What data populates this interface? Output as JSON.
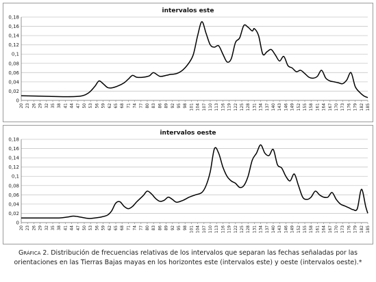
{
  "chart_data": [
    {
      "type": "line",
      "title": "intervalos este",
      "xlabel": "",
      "ylabel": "",
      "ylim": [
        0,
        0.18
      ],
      "yticks": [
        "0",
        "0,02",
        "0,04",
        "0,06",
        "0,08",
        "0,1",
        "0,12",
        "0,14",
        "0,16",
        "0,18"
      ],
      "xlim": [
        20,
        185
      ],
      "xticks": [
        20,
        23,
        26,
        29,
        32,
        35,
        38,
        41,
        44,
        47,
        50,
        53,
        56,
        59,
        62,
        65,
        68,
        71,
        74,
        77,
        80,
        83,
        86,
        89,
        92,
        95,
        98,
        101,
        104,
        107,
        110,
        113,
        116,
        119,
        122,
        125,
        128,
        131,
        134,
        137,
        140,
        143,
        146,
        149,
        152,
        155,
        158,
        161,
        164,
        167,
        170,
        173,
        176,
        179,
        182,
        185
      ],
      "grid": true,
      "x": [
        20,
        30,
        40,
        48,
        52,
        55,
        57,
        59,
        61,
        63,
        66,
        69,
        71,
        73,
        75,
        78,
        81,
        83,
        86,
        89,
        91,
        94,
        97,
        100,
        102,
        104,
        106,
        108,
        110,
        112,
        114,
        116,
        118,
        120,
        122,
        124,
        126,
        128,
        130,
        131,
        133,
        135,
        137,
        139,
        141,
        143,
        145,
        147,
        149,
        151,
        153,
        155,
        157,
        159,
        161,
        163,
        165,
        167,
        169,
        171,
        173,
        175,
        177,
        179,
        181,
        183,
        185
      ],
      "y": [
        0.01,
        0.009,
        0.008,
        0.009,
        0.016,
        0.03,
        0.042,
        0.036,
        0.028,
        0.027,
        0.031,
        0.038,
        0.046,
        0.054,
        0.05,
        0.05,
        0.053,
        0.06,
        0.052,
        0.054,
        0.056,
        0.058,
        0.066,
        0.082,
        0.1,
        0.14,
        0.17,
        0.145,
        0.12,
        0.115,
        0.118,
        0.1,
        0.083,
        0.09,
        0.125,
        0.135,
        0.162,
        0.158,
        0.15,
        0.155,
        0.14,
        0.1,
        0.105,
        0.11,
        0.098,
        0.085,
        0.095,
        0.075,
        0.07,
        0.062,
        0.065,
        0.058,
        0.05,
        0.048,
        0.052,
        0.065,
        0.048,
        0.042,
        0.04,
        0.038,
        0.036,
        0.044,
        0.06,
        0.03,
        0.018,
        0.01,
        0.006
      ]
    },
    {
      "type": "line",
      "title": "intervalos oeste",
      "xlabel": "",
      "ylabel": "",
      "ylim": [
        0,
        0.18
      ],
      "yticks": [
        "0",
        "0,02",
        "0,04",
        "0,06",
        "0,08",
        "0,1",
        "0,12",
        "0,14",
        "0,16",
        "0,18"
      ],
      "xlim": [
        20,
        185
      ],
      "xticks": [
        20,
        23,
        26,
        29,
        32,
        35,
        38,
        41,
        44,
        47,
        50,
        53,
        56,
        59,
        62,
        65,
        68,
        71,
        74,
        77,
        80,
        83,
        86,
        89,
        92,
        95,
        98,
        101,
        104,
        107,
        110,
        113,
        116,
        119,
        122,
        125,
        128,
        131,
        134,
        137,
        140,
        143,
        146,
        149,
        152,
        155,
        158,
        161,
        164,
        167,
        170,
        173,
        176,
        179,
        182,
        185
      ],
      "grid": true,
      "x": [
        20,
        30,
        38,
        42,
        45,
        48,
        52,
        55,
        58,
        61,
        63,
        65,
        67,
        69,
        71,
        73,
        75,
        78,
        80,
        82,
        84,
        86,
        88,
        90,
        92,
        94,
        97,
        100,
        103,
        106,
        108,
        110,
        112,
        114,
        116,
        118,
        120,
        122,
        124,
        126,
        128,
        130,
        132,
        134,
        136,
        138,
        140,
        142,
        144,
        146,
        148,
        150,
        152,
        154,
        156,
        158,
        160,
        162,
        164,
        166,
        168,
        170,
        172,
        174,
        176,
        178,
        180,
        182,
        184,
        185
      ],
      "y": [
        0.01,
        0.01,
        0.01,
        0.012,
        0.014,
        0.012,
        0.009,
        0.01,
        0.012,
        0.016,
        0.025,
        0.042,
        0.045,
        0.035,
        0.03,
        0.035,
        0.045,
        0.058,
        0.068,
        0.062,
        0.052,
        0.046,
        0.048,
        0.055,
        0.05,
        0.044,
        0.048,
        0.055,
        0.06,
        0.065,
        0.08,
        0.11,
        0.16,
        0.15,
        0.12,
        0.1,
        0.09,
        0.085,
        0.076,
        0.08,
        0.1,
        0.135,
        0.15,
        0.168,
        0.15,
        0.145,
        0.158,
        0.125,
        0.118,
        0.1,
        0.09,
        0.105,
        0.08,
        0.055,
        0.05,
        0.055,
        0.068,
        0.06,
        0.055,
        0.055,
        0.065,
        0.05,
        0.04,
        0.036,
        0.032,
        0.028,
        0.03,
        0.072,
        0.035,
        0.02
      ]
    }
  ],
  "caption": {
    "label": "Gráfica 2.",
    "text": " Distribución de frecuencias relativas de los intervalos que separan las fechas señaladas por las orientaciones en las Tierras Bajas mayas en los horizontes este (intervalos este) y oeste (intervalos oeste).*"
  },
  "colors": {
    "line": "#000000",
    "grid": "#c8c8c8",
    "axis": "#777777"
  }
}
